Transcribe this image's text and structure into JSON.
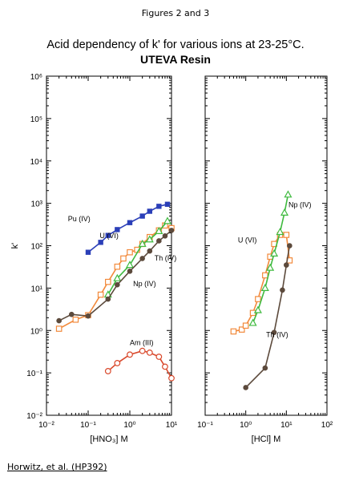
{
  "figure_label": "Figures 2 and 3",
  "footer_text": "Horwitz, et al. (HP392)",
  "chart_data": [
    {
      "type": "line",
      "title": "Acid dependency of k' for various ions at 23-25°C.",
      "subtitle": "UTEVA Resin",
      "xlabel": "[HNO₃] M",
      "ylabel": "k'",
      "x_scale": "log",
      "y_scale": "log",
      "xlim": [
        0.01,
        10
      ],
      "ylim": [
        0.01,
        1000000
      ],
      "x_ticks": [
        "10⁻²",
        "10⁻¹",
        "10⁰",
        "10¹"
      ],
      "y_ticks": [
        "10⁻²",
        "10⁻¹",
        "10⁰",
        "10¹",
        "10²",
        "10³",
        "10⁴",
        "10⁵",
        "10⁶"
      ],
      "series": [
        {
          "name": "Pu (IV)",
          "color": "#2b3fb8",
          "marker": "filled-square",
          "points": [
            [
              0.1,
              70
            ],
            [
              0.2,
              120
            ],
            [
              0.3,
              175
            ],
            [
              0.5,
              240
            ],
            [
              1,
              350
            ],
            [
              2,
              500
            ],
            [
              3,
              650
            ],
            [
              5,
              850
            ],
            [
              8,
              950
            ]
          ]
        },
        {
          "name": "U (VI)",
          "color": "#f28a3c",
          "marker": "open-square",
          "points": [
            [
              0.02,
              1.1
            ],
            [
              0.05,
              1.8
            ],
            [
              0.1,
              2.3
            ],
            [
              0.2,
              7
            ],
            [
              0.3,
              14
            ],
            [
              0.5,
              32
            ],
            [
              0.7,
              50
            ],
            [
              1,
              70
            ],
            [
              1.5,
              80
            ],
            [
              2,
              110
            ],
            [
              3,
              160
            ],
            [
              5,
              230
            ],
            [
              7,
              300
            ],
            [
              10,
              260
            ]
          ]
        },
        {
          "name": "Np (IV)",
          "color": "#3fba3f",
          "marker": "open-triangle",
          "points": [
            [
              0.3,
              7
            ],
            [
              0.5,
              17
            ],
            [
              1,
              35
            ],
            [
              2,
              110
            ],
            [
              3,
              140
            ],
            [
              5,
              220
            ],
            [
              8,
              380
            ]
          ]
        },
        {
          "name": "Th (IV)",
          "color": "#5c4a3c",
          "marker": "filled-circle",
          "points": [
            [
              0.02,
              1.7
            ],
            [
              0.04,
              2.4
            ],
            [
              0.1,
              2.2
            ],
            [
              0.3,
              5.5
            ],
            [
              0.5,
              12
            ],
            [
              1,
              25
            ],
            [
              2,
              50
            ],
            [
              3,
              75
            ],
            [
              5,
              130
            ],
            [
              7,
              170
            ],
            [
              10,
              230
            ]
          ]
        },
        {
          "name": "Am (III)",
          "color": "#d9482b",
          "marker": "open-circle",
          "points": [
            [
              0.3,
              0.11
            ],
            [
              0.5,
              0.17
            ],
            [
              1,
              0.27
            ],
            [
              2,
              0.33
            ],
            [
              3,
              0.3
            ],
            [
              5,
              0.24
            ],
            [
              7,
              0.14
            ],
            [
              10,
              0.075
            ]
          ]
        }
      ]
    },
    {
      "type": "line",
      "xlabel": "[HCl] M",
      "x_scale": "log",
      "y_scale": "log",
      "xlim": [
        0.1,
        100
      ],
      "ylim": [
        0.01,
        1000000
      ],
      "x_ticks": [
        "10⁻¹",
        "10⁰",
        "10¹",
        "10²"
      ],
      "series": [
        {
          "name": "U (VI)",
          "color": "#f28a3c",
          "marker": "open-square",
          "points": [
            [
              0.5,
              0.95
            ],
            [
              0.8,
              1.05
            ],
            [
              1,
              1.3
            ],
            [
              1.5,
              2.6
            ],
            [
              2,
              5.5
            ],
            [
              3,
              20
            ],
            [
              4,
              55
            ],
            [
              5,
              110
            ],
            [
              7,
              180
            ],
            [
              10,
              180
            ],
            [
              12,
              45
            ]
          ]
        },
        {
          "name": "Np (IV)",
          "color": "#3fba3f",
          "marker": "open-triangle",
          "points": [
            [
              1.5,
              1.5
            ],
            [
              2,
              3
            ],
            [
              3,
              10
            ],
            [
              4,
              30
            ],
            [
              5,
              65
            ],
            [
              7,
              210
            ],
            [
              9,
              600
            ],
            [
              11,
              1600
            ]
          ]
        },
        {
          "name": "Th (IV)",
          "color": "#5c4a3c",
          "marker": "filled-circle",
          "points": [
            [
              1,
              0.045
            ],
            [
              3,
              0.13
            ],
            [
              5,
              0.9
            ],
            [
              8,
              9
            ],
            [
              10,
              35
            ],
            [
              12,
              100
            ]
          ]
        }
      ]
    }
  ]
}
